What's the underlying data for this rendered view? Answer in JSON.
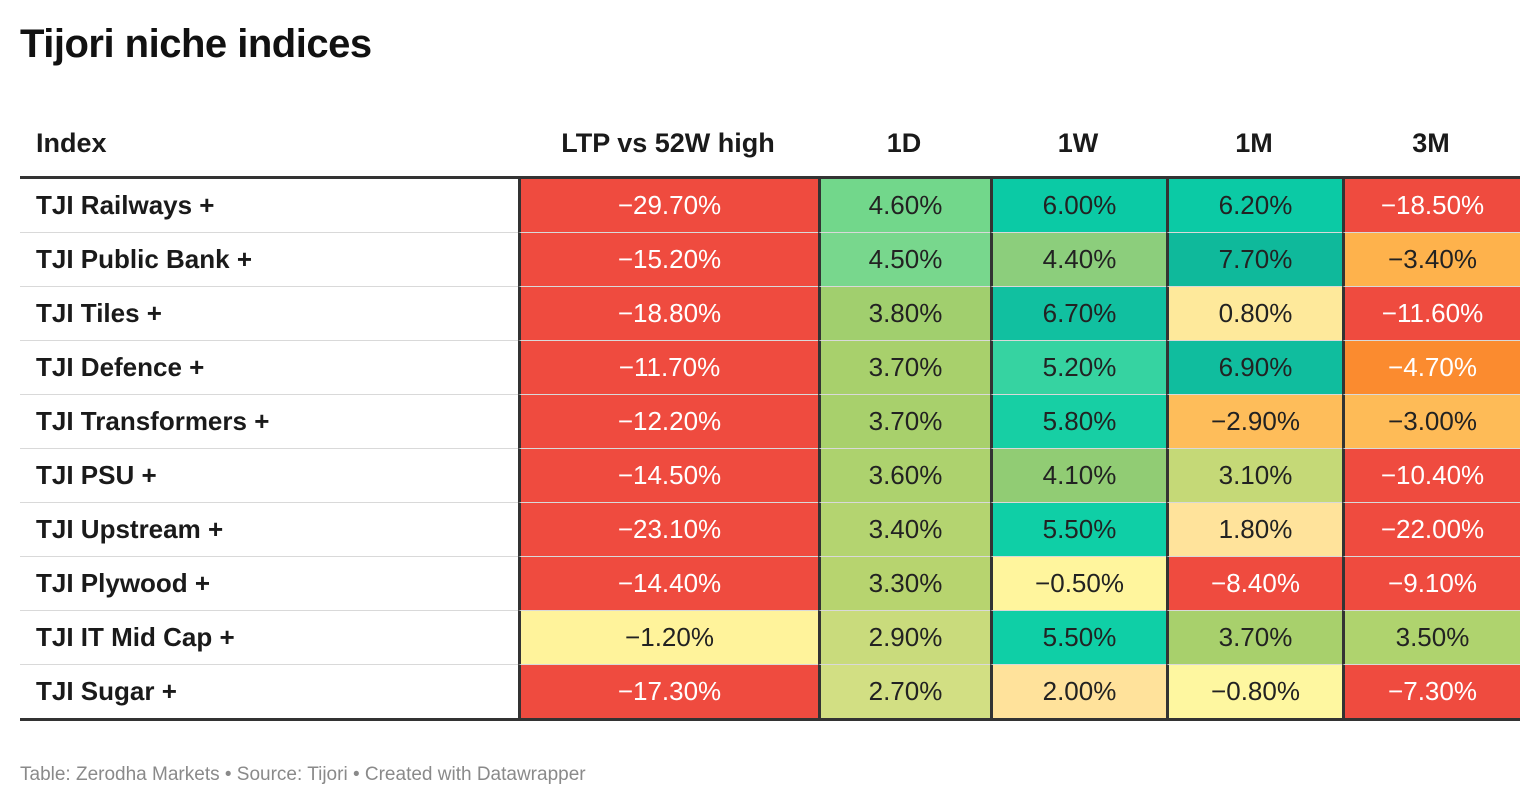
{
  "title": "Tijori niche indices",
  "footer": "Table: Zerodha Markets • Source: Tijori • Created with Datawrapper",
  "chart_data": {
    "type": "table",
    "title": "Tijori niche indices",
    "columns": [
      "Index",
      "LTP vs 52W high",
      "1D",
      "1W",
      "1M",
      "3M"
    ],
    "rows": [
      {
        "name": "TJI Railways +",
        "values": [
          "−29.70%",
          "4.60%",
          "6.00%",
          "6.20%",
          "−18.50%"
        ],
        "colors": [
          "#ef4b3f",
          "#72d78b",
          "#0bcaa5",
          "#0bcaa5",
          "#ef4b3f"
        ]
      },
      {
        "name": "TJI Public Bank +",
        "values": [
          "−15.20%",
          "4.50%",
          "4.40%",
          "7.70%",
          "−3.40%"
        ],
        "colors": [
          "#ef4b3f",
          "#78d78d",
          "#8cce7c",
          "#0fb99b",
          "#feb24c"
        ]
      },
      {
        "name": "TJI Tiles +",
        "values": [
          "−18.80%",
          "3.80%",
          "6.70%",
          "0.80%",
          "−11.60%"
        ],
        "colors": [
          "#ef4b3f",
          "#a1cf6e",
          "#11c0a0",
          "#fee99b",
          "#ef4b3f"
        ]
      },
      {
        "name": "TJI Defence +",
        "values": [
          "−11.70%",
          "3.70%",
          "5.20%",
          "6.90%",
          "−4.70%"
        ],
        "colors": [
          "#ef4b3f",
          "#a8d06c",
          "#36d3a1",
          "#10bd9e",
          "#fb8b2f"
        ]
      },
      {
        "name": "TJI Transformers +",
        "values": [
          "−12.20%",
          "3.70%",
          "5.80%",
          "−2.90%",
          "−3.00%"
        ],
        "colors": [
          "#ef4b3f",
          "#a8d06c",
          "#17cfa4",
          "#febd5a",
          "#febb57"
        ]
      },
      {
        "name": "TJI PSU +",
        "values": [
          "−14.50%",
          "3.60%",
          "4.10%",
          "3.10%",
          "−10.40%"
        ],
        "colors": [
          "#ef4b3f",
          "#add26e",
          "#91cc74",
          "#c5d977",
          "#ef4b3f"
        ]
      },
      {
        "name": "TJI Upstream +",
        "values": [
          "−23.10%",
          "3.40%",
          "5.50%",
          "1.80%",
          "−22.00%"
        ],
        "colors": [
          "#ef4b3f",
          "#b4d470",
          "#0fcfa6",
          "#ffe39b",
          "#ef4b3f"
        ]
      },
      {
        "name": "TJI Plywood +",
        "values": [
          "−14.40%",
          "3.30%",
          "−0.50%",
          "−8.40%",
          "−9.10%"
        ],
        "colors": [
          "#ef4b3f",
          "#b7d46f",
          "#fff59d",
          "#ef4b3f",
          "#ef4b3f"
        ]
      },
      {
        "name": "TJI IT Mid Cap +",
        "values": [
          "−1.20%",
          "2.90%",
          "5.50%",
          "3.70%",
          "3.50%"
        ],
        "colors": [
          "#fff39b",
          "#c9db7c",
          "#0fcfa6",
          "#a8d06c",
          "#afd36e"
        ]
      },
      {
        "name": "TJI Sugar +",
        "values": [
          "−17.30%",
          "2.70%",
          "2.00%",
          "−0.80%",
          "−7.30%"
        ],
        "colors": [
          "#ef4b3f",
          "#d2df83",
          "#ffe29b",
          "#fef7a0",
          "#ef4b3f"
        ]
      }
    ]
  }
}
